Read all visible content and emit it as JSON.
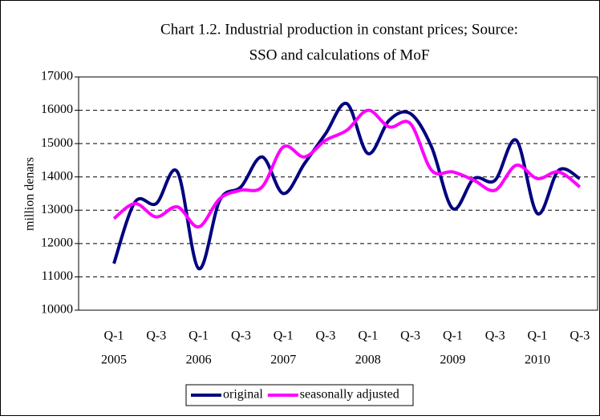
{
  "chart_data": {
    "type": "line",
    "title": [
      "Chart 1.2. Industrial production in constant prices; Source:",
      "SSO and calculations of MoF"
    ],
    "y_label": "million denars",
    "categories": [
      "Q-1",
      null,
      "Q-3",
      null,
      "Q-1",
      null,
      "Q-3",
      null,
      "Q-1",
      null,
      "Q-3",
      null,
      "Q-1",
      null,
      "Q-3",
      null,
      "Q-1",
      null,
      "Q-3",
      null,
      "Q-1",
      null,
      "Q-3"
    ],
    "category_years": [
      "2005",
      null,
      null,
      null,
      "2006",
      null,
      null,
      null,
      "2007",
      null,
      null,
      null,
      "2008",
      null,
      null,
      null,
      "2009",
      null,
      null,
      null,
      "2010",
      null,
      null
    ],
    "series": [
      {
        "name": "original",
        "color": "#000080",
        "values": [
          11400,
          13250,
          13200,
          14150,
          11250,
          13300,
          13700,
          14600,
          13500,
          14400,
          15300,
          16200,
          14700,
          15700,
          15900,
          14900,
          13050,
          13950,
          13900,
          15100,
          12900,
          14200,
          13950
        ]
      },
      {
        "name": "seasonally adjusted",
        "color": "#ff00ff",
        "values": [
          12750,
          13200,
          12800,
          13100,
          12500,
          13350,
          13600,
          13700,
          14900,
          14600,
          15100,
          15400,
          16000,
          15500,
          15600,
          14200,
          14150,
          13900,
          13600,
          14350,
          13950,
          14150,
          13700
        ]
      }
    ],
    "ylim": [
      10000,
      17000
    ],
    "yticks": [
      10000,
      11000,
      12000,
      13000,
      14000,
      15000,
      16000,
      17000
    ],
    "grid": true,
    "legend": "bottom"
  }
}
